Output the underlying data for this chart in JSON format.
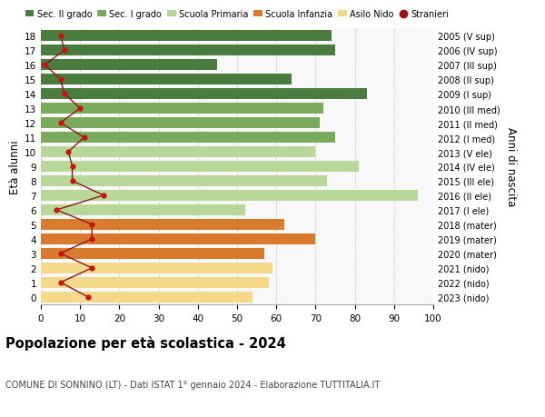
{
  "ages": [
    18,
    17,
    16,
    15,
    14,
    13,
    12,
    11,
    10,
    9,
    8,
    7,
    6,
    5,
    4,
    3,
    2,
    1,
    0
  ],
  "right_labels": [
    "2005 (V sup)",
    "2006 (IV sup)",
    "2007 (III sup)",
    "2008 (II sup)",
    "2009 (I sup)",
    "2010 (III med)",
    "2011 (II med)",
    "2012 (I med)",
    "2013 (V ele)",
    "2014 (IV ele)",
    "2015 (III ele)",
    "2016 (II ele)",
    "2017 (I ele)",
    "2018 (mater)",
    "2019 (mater)",
    "2020 (mater)",
    "2021 (nido)",
    "2022 (nido)",
    "2023 (nido)"
  ],
  "bar_values": [
    74,
    75,
    45,
    64,
    83,
    72,
    71,
    75,
    70,
    81,
    73,
    96,
    52,
    62,
    70,
    57,
    59,
    58,
    54
  ],
  "bar_colors": [
    "#4a7c3f",
    "#4a7c3f",
    "#4a7c3f",
    "#4a7c3f",
    "#4a7c3f",
    "#7aaa5c",
    "#7aaa5c",
    "#7aaa5c",
    "#b8d89a",
    "#b8d89a",
    "#b8d89a",
    "#b8d89a",
    "#b8d89a",
    "#d97b2e",
    "#d97b2e",
    "#d97b2e",
    "#f5d98b",
    "#f5d98b",
    "#f5d98b"
  ],
  "stranieri_values": [
    5,
    6,
    1,
    5,
    6,
    10,
    5,
    11,
    7,
    8,
    8,
    16,
    4,
    13,
    13,
    5,
    13,
    5,
    12
  ],
  "legend_labels": [
    "Sec. II grado",
    "Sec. I grado",
    "Scuola Primaria",
    "Scuola Infanzia",
    "Asilo Nido",
    "Stranieri"
  ],
  "legend_colors": [
    "#4a7c3f",
    "#7aaa5c",
    "#b8d89a",
    "#d97b2e",
    "#f5d98b",
    "#a01010"
  ],
  "ylabel_left": "Età alunni",
  "ylabel_right": "Anni di nascita",
  "xlim": [
    0,
    100
  ],
  "xticks": [
    0,
    10,
    20,
    30,
    40,
    50,
    60,
    70,
    80,
    90,
    100
  ],
  "title_bold": "Popolazione per età scolastica - 2024",
  "subtitle": "COMUNE DI SONNINO (LT) - Dati ISTAT 1° gennaio 2024 - Elaborazione TUTTITALIA.IT",
  "bg_color": "#ffffff",
  "plot_bg_color": "#f8f8f8",
  "grid_color": "#cccccc",
  "stranieri_line_color": "#8b1a1a",
  "stranieri_dot_color": "#cc1111"
}
